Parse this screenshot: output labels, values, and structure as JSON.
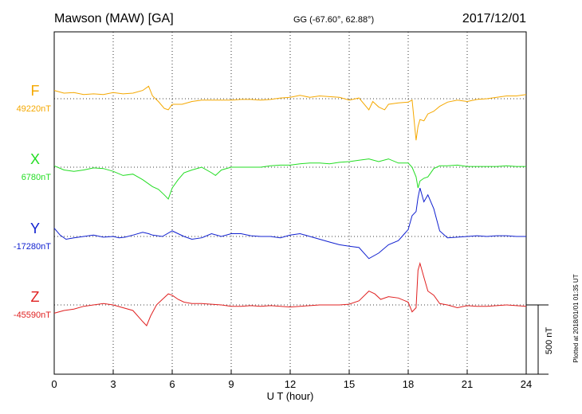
{
  "header": {
    "station": "Mawson (MAW)  [GA]",
    "coords": "GG (-67.60°,  62.88°)",
    "date": "2017/12/01"
  },
  "footer": {
    "plotted_note": "Plotted at 2018/01/01 01:35 UT"
  },
  "scale_bar_label": "500 nT",
  "chart_data": {
    "type": "line",
    "xlabel": "U T (hour)",
    "xlim": [
      0,
      24
    ],
    "x_ticks": [
      0,
      3,
      6,
      9,
      12,
      15,
      18,
      21,
      24
    ],
    "grid": true,
    "series": [
      {
        "name": "F",
        "baseline_label": "49220nT",
        "color": "#f5a800",
        "x": [
          0,
          0.5,
          1,
          1.5,
          2,
          2.5,
          3,
          3.5,
          4,
          4.5,
          4.8,
          5,
          5.3,
          5.6,
          5.8,
          6,
          6.5,
          7,
          7.5,
          8,
          8.5,
          9,
          9.5,
          10,
          10.5,
          11,
          11.5,
          12,
          12.5,
          13,
          13.5,
          14,
          14.5,
          15,
          15.5,
          16,
          16.2,
          16.5,
          16.8,
          17,
          17.5,
          18,
          18.2,
          18.4,
          18.5,
          18.6,
          18.8,
          19,
          19.3,
          19.6,
          20,
          20.5,
          21,
          21.5,
          22,
          22.5,
          23,
          23.5,
          24
        ],
        "values": [
          60,
          40,
          45,
          30,
          35,
          30,
          45,
          35,
          40,
          60,
          90,
          20,
          -20,
          -70,
          -80,
          -40,
          -40,
          -20,
          -10,
          -10,
          -10,
          -10,
          -5,
          -5,
          -10,
          -5,
          5,
          10,
          25,
          10,
          20,
          15,
          10,
          -10,
          5,
          -80,
          -20,
          -60,
          -80,
          -40,
          -30,
          -25,
          -10,
          -300,
          -200,
          -150,
          -160,
          -110,
          -90,
          -55,
          -25,
          -10,
          -20,
          -5,
          0,
          10,
          20,
          20,
          30
        ]
      },
      {
        "name": "X",
        "baseline_label": "6780nT",
        "color": "#22dd22",
        "x": [
          0,
          0.5,
          1,
          1.5,
          2,
          2.5,
          3,
          3.5,
          4,
          4.5,
          5,
          5.3,
          5.6,
          5.8,
          6,
          6.3,
          6.6,
          7,
          7.5,
          8,
          8.2,
          8.5,
          9,
          9.5,
          10,
          10.5,
          11,
          11.5,
          12,
          12.5,
          13,
          13.5,
          14,
          14.5,
          15,
          15.5,
          16,
          16.5,
          17,
          17.5,
          18,
          18.2,
          18.4,
          18.5,
          18.6,
          18.8,
          19,
          19.3,
          19.6,
          20,
          20.5,
          21,
          21.5,
          22,
          22.5,
          23,
          23.5,
          24
        ],
        "values": [
          10,
          -20,
          -30,
          -20,
          -5,
          -10,
          -30,
          -60,
          -50,
          -90,
          -140,
          -160,
          -200,
          -230,
          -150,
          -90,
          -40,
          -20,
          0,
          -40,
          -60,
          -20,
          0,
          0,
          0,
          0,
          10,
          15,
          15,
          25,
          30,
          30,
          25,
          35,
          40,
          50,
          60,
          40,
          60,
          30,
          30,
          0,
          -70,
          -150,
          -100,
          -80,
          -70,
          -10,
          10,
          10,
          15,
          5,
          5,
          5,
          5,
          10,
          5,
          5
        ]
      },
      {
        "name": "Y",
        "baseline_label": "-17280nT",
        "color": "#1020d0",
        "x": [
          0,
          0.3,
          0.6,
          1,
          1.5,
          2,
          2.5,
          3,
          3.3,
          3.6,
          4,
          4.5,
          4.8,
          5,
          5.5,
          6,
          6.3,
          6.6,
          7,
          7.5,
          8,
          8.5,
          9,
          9.5,
          10,
          10.5,
          11,
          11.5,
          12,
          12.5,
          13,
          13.5,
          14,
          14.5,
          15,
          15.5,
          16,
          16.5,
          17,
          17.5,
          18,
          18.2,
          18.4,
          18.5,
          18.6,
          18.8,
          19,
          19.3,
          19.6,
          20,
          20.5,
          21,
          21.5,
          22,
          22.5,
          23,
          23.5,
          24
        ],
        "values": [
          60,
          10,
          -20,
          -10,
          0,
          10,
          -5,
          0,
          -10,
          -5,
          10,
          30,
          20,
          10,
          0,
          40,
          20,
          0,
          -20,
          -10,
          20,
          0,
          20,
          20,
          5,
          0,
          0,
          -10,
          10,
          20,
          0,
          -20,
          -40,
          -60,
          -70,
          -80,
          -160,
          -120,
          -60,
          -30,
          50,
          150,
          180,
          280,
          350,
          250,
          300,
          200,
          40,
          -10,
          -5,
          0,
          5,
          0,
          5,
          5,
          0,
          0
        ]
      },
      {
        "name": "Z",
        "baseline_label": "-45590nT",
        "color": "#e02020",
        "x": [
          0,
          0.5,
          1,
          1.5,
          2,
          2.5,
          3,
          3.5,
          4,
          4.5,
          4.7,
          4.9,
          5.2,
          5.5,
          5.8,
          6,
          6.3,
          6.6,
          7,
          7.5,
          8,
          8.5,
          9,
          9.5,
          10,
          10.5,
          11,
          11.5,
          12,
          12.5,
          13,
          13.5,
          14,
          14.5,
          15,
          15.5,
          16,
          16.3,
          16.6,
          17,
          17.5,
          18,
          18.2,
          18.4,
          18.5,
          18.6,
          18.8,
          19,
          19.3,
          19.6,
          20,
          20.5,
          21,
          21.5,
          22,
          22.5,
          23,
          23.5,
          24
        ],
        "values": [
          -60,
          -40,
          -30,
          -10,
          0,
          10,
          0,
          -20,
          -40,
          -120,
          -150,
          -80,
          0,
          40,
          80,
          70,
          40,
          20,
          10,
          10,
          5,
          0,
          -10,
          -10,
          -5,
          -10,
          -5,
          -10,
          -15,
          -10,
          -5,
          0,
          0,
          0,
          5,
          30,
          100,
          80,
          40,
          60,
          50,
          20,
          -50,
          -20,
          250,
          300,
          200,
          100,
          70,
          10,
          0,
          -20,
          -5,
          -10,
          -10,
          -5,
          0,
          -5,
          -10
        ]
      }
    ]
  }
}
